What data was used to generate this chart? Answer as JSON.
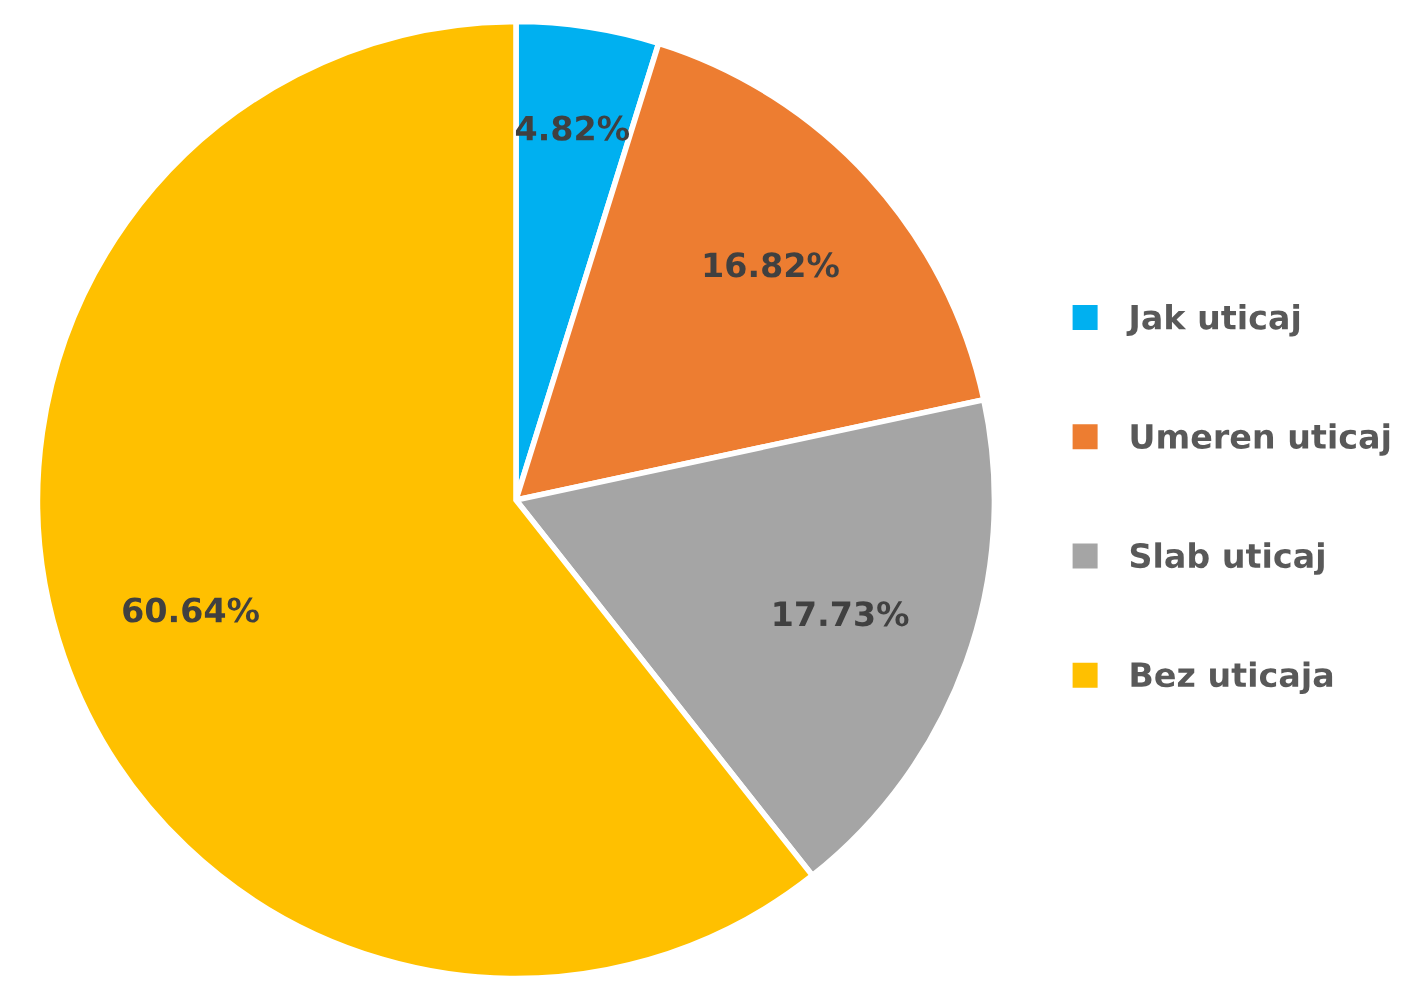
{
  "chart_data": {
    "type": "pie",
    "categories": [
      "Jak uticaj",
      "Umeren uticaj",
      "Slab uticaj",
      "Bez uticaja"
    ],
    "values": [
      4.82,
      16.82,
      17.73,
      60.64
    ],
    "colors": [
      "#00b0f0",
      "#ed7d31",
      "#a5a5a5",
      "#ffc000"
    ],
    "value_labels": [
      "4.82%",
      "16.82%",
      "17.73%",
      "60.64%"
    ],
    "legend": "right"
  }
}
